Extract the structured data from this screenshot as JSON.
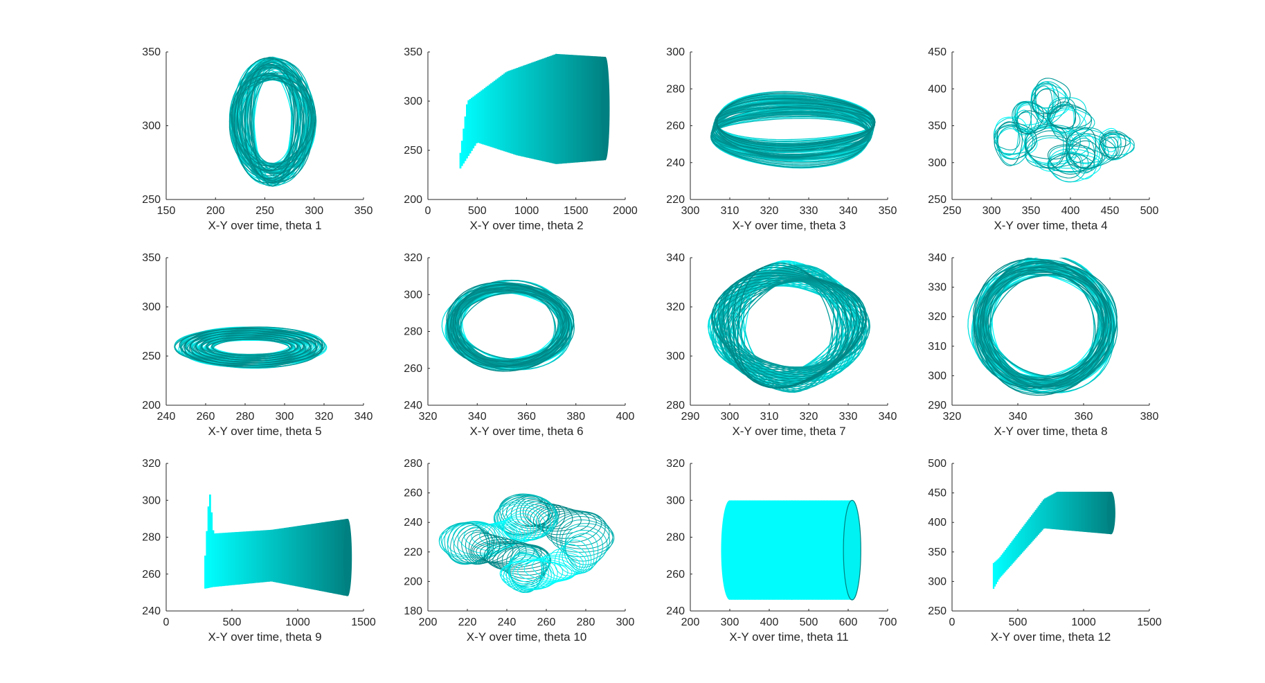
{
  "figure": {
    "colors": {
      "start": "#00ffff",
      "end": "#008080",
      "axis": "#262626",
      "background": "#ffffff"
    }
  },
  "chart_data": [
    {
      "type": "line",
      "subplot": "theta 1",
      "xlabel": "X-Y over time, theta 1",
      "xlim": [
        150,
        350
      ],
      "ylim": [
        250,
        350
      ],
      "xticks": [
        150,
        200,
        250,
        300,
        350
      ],
      "yticks": [
        250,
        300,
        350
      ],
      "grid": false,
      "shape": "donut-vertical",
      "params": {
        "cx": 258,
        "cy": 303,
        "rx": 42,
        "ry": 42,
        "w": 0.55,
        "h": 0.85
      }
    },
    {
      "type": "line",
      "subplot": "theta 2",
      "xlabel": "X-Y over time, theta 2",
      "xlim": [
        0,
        2000
      ],
      "ylim": [
        200,
        350
      ],
      "xticks": [
        0,
        500,
        1000,
        1500,
        2000
      ],
      "yticks": [
        200,
        250,
        300,
        350
      ],
      "grid": false,
      "shape": "sweep-band",
      "params": {
        "x0": 320,
        "x1": 1800,
        "top": [
          [
            320,
            240
          ],
          [
            400,
            300
          ],
          [
            800,
            330
          ],
          [
            1300,
            348
          ],
          [
            1800,
            345
          ]
        ],
        "bot": [
          [
            320,
            230
          ],
          [
            500,
            258
          ],
          [
            900,
            245
          ],
          [
            1300,
            236
          ],
          [
            1800,
            240
          ]
        ]
      }
    },
    {
      "type": "line",
      "subplot": "theta 3",
      "xlabel": "X-Y over time, theta 3",
      "xlim": [
        300,
        350
      ],
      "ylim": [
        220,
        300
      ],
      "xticks": [
        300,
        310,
        320,
        330,
        340,
        350
      ],
      "yticks": [
        220,
        240,
        260,
        280,
        300
      ],
      "grid": false,
      "shape": "flat-ring",
      "params": {
        "cx": 326,
        "cy": 262,
        "rx": 20,
        "ry": 17
      }
    },
    {
      "type": "line",
      "subplot": "theta 4",
      "xlabel": "X-Y over time, theta 4",
      "xlim": [
        250,
        500
      ],
      "ylim": [
        250,
        450
      ],
      "xticks": [
        250,
        300,
        350,
        400,
        450,
        500
      ],
      "yticks": [
        250,
        300,
        350,
        400,
        450
      ],
      "grid": false,
      "shape": "blob",
      "params": {
        "cx": 390,
        "cy": 340
      }
    },
    {
      "type": "line",
      "subplot": "theta 5",
      "xlabel": "X-Y over time, theta 5",
      "xlim": [
        240,
        340
      ],
      "ylim": [
        200,
        350
      ],
      "xticks": [
        240,
        260,
        280,
        300,
        320,
        340
      ],
      "yticks": [
        200,
        250,
        300,
        350
      ],
      "grid": false,
      "shape": "flat-donut",
      "params": {
        "cx": 283,
        "cy": 259,
        "rx": 38,
        "ry": 38
      }
    },
    {
      "type": "line",
      "subplot": "theta 6",
      "xlabel": "X-Y over time, theta 6",
      "xlim": [
        320,
        400
      ],
      "ylim": [
        240,
        320
      ],
      "xticks": [
        320,
        340,
        360,
        380,
        400
      ],
      "yticks": [
        240,
        260,
        280,
        300,
        320
      ],
      "grid": false,
      "shape": "ring",
      "params": {
        "cx": 353,
        "cy": 283,
        "rx": 25,
        "ry": 23
      }
    },
    {
      "type": "line",
      "subplot": "theta 7",
      "xlabel": "X-Y over time, theta 7",
      "xlim": [
        290,
        340
      ],
      "ylim": [
        280,
        340
      ],
      "xticks": [
        290,
        300,
        310,
        320,
        330,
        340
      ],
      "yticks": [
        280,
        300,
        320,
        340
      ],
      "grid": false,
      "shape": "twisted-ring",
      "params": {
        "cx": 315,
        "cy": 312,
        "rx": 19,
        "ry": 25
      }
    },
    {
      "type": "line",
      "subplot": "theta 8",
      "xlabel": "X-Y over time, theta 8",
      "xlim": [
        320,
        380
      ],
      "ylim": [
        290,
        340
      ],
      "xticks": [
        320,
        340,
        360,
        380
      ],
      "yticks": [
        290,
        300,
        310,
        320,
        330,
        340
      ],
      "grid": false,
      "shape": "ring",
      "params": {
        "cx": 348,
        "cy": 317,
        "rx": 21,
        "ry": 22
      }
    },
    {
      "type": "line",
      "subplot": "theta 9",
      "xlabel": "X-Y over time, theta 9",
      "xlim": [
        0,
        1500
      ],
      "ylim": [
        240,
        320
      ],
      "xticks": [
        0,
        500,
        1000,
        1500
      ],
      "yticks": [
        240,
        260,
        280,
        300,
        320
      ],
      "grid": false,
      "shape": "sweep-band",
      "params": {
        "x0": 290,
        "x1": 1380,
        "top": [
          [
            290,
            262
          ],
          [
            330,
            306
          ],
          [
            360,
            282
          ],
          [
            800,
            284
          ],
          [
            1380,
            290
          ]
        ],
        "bot": [
          [
            290,
            252
          ],
          [
            360,
            253
          ],
          [
            800,
            256
          ],
          [
            1380,
            248
          ]
        ]
      }
    },
    {
      "type": "line",
      "subplot": "theta 10",
      "xlabel": "X-Y over time, theta 10",
      "xlim": [
        200,
        300
      ],
      "ylim": [
        180,
        280
      ],
      "xticks": [
        200,
        220,
        240,
        260,
        280,
        300
      ],
      "yticks": [
        180,
        200,
        220,
        240,
        260,
        280
      ],
      "grid": false,
      "shape": "spiro",
      "params": {
        "cx": 250,
        "cy": 226
      }
    },
    {
      "type": "line",
      "subplot": "theta 11",
      "xlabel": "X-Y over time, theta 11",
      "xlim": [
        200,
        700
      ],
      "ylim": [
        240,
        320
      ],
      "xticks": [
        200,
        300,
        400,
        500,
        600,
        700
      ],
      "yticks": [
        240,
        260,
        280,
        300,
        320
      ],
      "grid": false,
      "shape": "cylinder",
      "params": {
        "x0": 300,
        "x1": 610,
        "yc": 273,
        "ry": 27,
        "rx": 22
      }
    },
    {
      "type": "line",
      "subplot": "theta 12",
      "xlabel": "X-Y over time, theta 12",
      "xlim": [
        0,
        1500
      ],
      "ylim": [
        250,
        500
      ],
      "xticks": [
        0,
        500,
        1000,
        1500
      ],
      "yticks": [
        250,
        300,
        350,
        400,
        450,
        500
      ],
      "grid": false,
      "shape": "sweep-band",
      "params": {
        "x0": 310,
        "x1": 1210,
        "top": [
          [
            310,
            330
          ],
          [
            360,
            340
          ],
          [
            700,
            440
          ],
          [
            800,
            452
          ],
          [
            1210,
            452
          ]
        ],
        "bot": [
          [
            310,
            285
          ],
          [
            360,
            305
          ],
          [
            700,
            390
          ],
          [
            800,
            388
          ],
          [
            1210,
            380
          ]
        ]
      }
    }
  ]
}
